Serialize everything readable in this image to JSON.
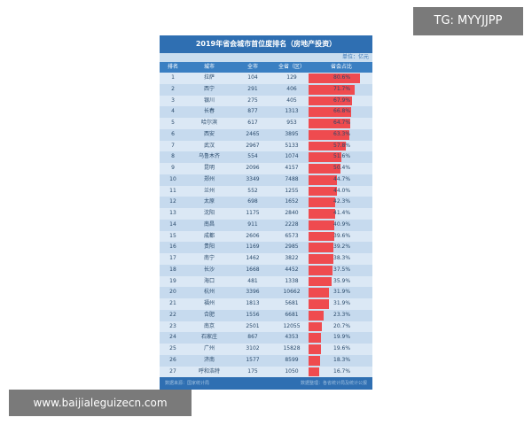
{
  "title": "2019年省会城市首位度排名（房地产投资）",
  "unit": "单位：亿元",
  "headers": [
    "排名",
    "城市",
    "全市",
    "全省（区）",
    "省会占比"
  ],
  "footer_left": "数据来源：国家统计局",
  "footer_right": "数据整理：各省统计局及统计公报",
  "watermark_tg": "TG: MYYJJPP",
  "watermark_site": "www.baijialeguizecn.com",
  "colors": {
    "bar": "#ef4b4f",
    "header": "#2f6fb2"
  },
  "chart_data": {
    "type": "table",
    "columns": [
      "排名",
      "城市",
      "全市",
      "全省（区）",
      "省会占比"
    ],
    "rows": [
      {
        "rank": "1",
        "city": "拉萨",
        "city_inv": "104",
        "prov_inv": "129",
        "share": "80.6%",
        "share_value": 80.6
      },
      {
        "rank": "2",
        "city": "西宁",
        "city_inv": "291",
        "prov_inv": "406",
        "share": "71.7%",
        "share_value": 71.7
      },
      {
        "rank": "3",
        "city": "银川",
        "city_inv": "275",
        "prov_inv": "405",
        "share": "67.9%",
        "share_value": 67.9
      },
      {
        "rank": "4",
        "city": "长春",
        "city_inv": "877",
        "prov_inv": "1313",
        "share": "66.8%",
        "share_value": 66.8
      },
      {
        "rank": "5",
        "city": "哈尔滨",
        "city_inv": "617",
        "prov_inv": "953",
        "share": "64.7%",
        "share_value": 64.7
      },
      {
        "rank": "6",
        "city": "西安",
        "city_inv": "2465",
        "prov_inv": "3895",
        "share": "63.3%",
        "share_value": 63.3
      },
      {
        "rank": "7",
        "city": "武汉",
        "city_inv": "2967",
        "prov_inv": "5133",
        "share": "57.8%",
        "share_value": 57.8
      },
      {
        "rank": "8",
        "city": "乌鲁木齐",
        "city_inv": "554",
        "prov_inv": "1074",
        "share": "51.6%",
        "share_value": 51.6
      },
      {
        "rank": "9",
        "city": "昆明",
        "city_inv": "2096",
        "prov_inv": "4157",
        "share": "50.4%",
        "share_value": 50.4
      },
      {
        "rank": "10",
        "city": "郑州",
        "city_inv": "3349",
        "prov_inv": "7488",
        "share": "44.7%",
        "share_value": 44.7
      },
      {
        "rank": "11",
        "city": "兰州",
        "city_inv": "552",
        "prov_inv": "1255",
        "share": "44.0%",
        "share_value": 44.0
      },
      {
        "rank": "12",
        "city": "太原",
        "city_inv": "698",
        "prov_inv": "1652",
        "share": "42.3%",
        "share_value": 42.3
      },
      {
        "rank": "13",
        "city": "沈阳",
        "city_inv": "1175",
        "prov_inv": "2840",
        "share": "41.4%",
        "share_value": 41.4
      },
      {
        "rank": "14",
        "city": "南昌",
        "city_inv": "911",
        "prov_inv": "2228",
        "share": "40.9%",
        "share_value": 40.9
      },
      {
        "rank": "15",
        "city": "成都",
        "city_inv": "2606",
        "prov_inv": "6573",
        "share": "39.6%",
        "share_value": 39.6
      },
      {
        "rank": "16",
        "city": "贵阳",
        "city_inv": "1169",
        "prov_inv": "2985",
        "share": "39.2%",
        "share_value": 39.2
      },
      {
        "rank": "17",
        "city": "南宁",
        "city_inv": "1462",
        "prov_inv": "3822",
        "share": "38.3%",
        "share_value": 38.3
      },
      {
        "rank": "18",
        "city": "长沙",
        "city_inv": "1668",
        "prov_inv": "4452",
        "share": "37.5%",
        "share_value": 37.5
      },
      {
        "rank": "19",
        "city": "海口",
        "city_inv": "481",
        "prov_inv": "1338",
        "share": "35.9%",
        "share_value": 35.9
      },
      {
        "rank": "20",
        "city": "杭州",
        "city_inv": "3396",
        "prov_inv": "10662",
        "share": "31.9%",
        "share_value": 31.9
      },
      {
        "rank": "21",
        "city": "福州",
        "city_inv": "1813",
        "prov_inv": "5681",
        "share": "31.9%",
        "share_value": 31.9
      },
      {
        "rank": "22",
        "city": "合肥",
        "city_inv": "1556",
        "prov_inv": "6681",
        "share": "23.3%",
        "share_value": 23.3
      },
      {
        "rank": "23",
        "city": "南京",
        "city_inv": "2501",
        "prov_inv": "12055",
        "share": "20.7%",
        "share_value": 20.7
      },
      {
        "rank": "24",
        "city": "石家庄",
        "city_inv": "867",
        "prov_inv": "4353",
        "share": "19.9%",
        "share_value": 19.9
      },
      {
        "rank": "25",
        "city": "广州",
        "city_inv": "3102",
        "prov_inv": "15828",
        "share": "19.6%",
        "share_value": 19.6
      },
      {
        "rank": "26",
        "city": "济南",
        "city_inv": "1577",
        "prov_inv": "8599",
        "share": "18.3%",
        "share_value": 18.3
      },
      {
        "rank": "27",
        "city": "呼和浩特",
        "city_inv": "175",
        "prov_inv": "1050",
        "share": "16.7%",
        "share_value": 16.7
      }
    ]
  }
}
